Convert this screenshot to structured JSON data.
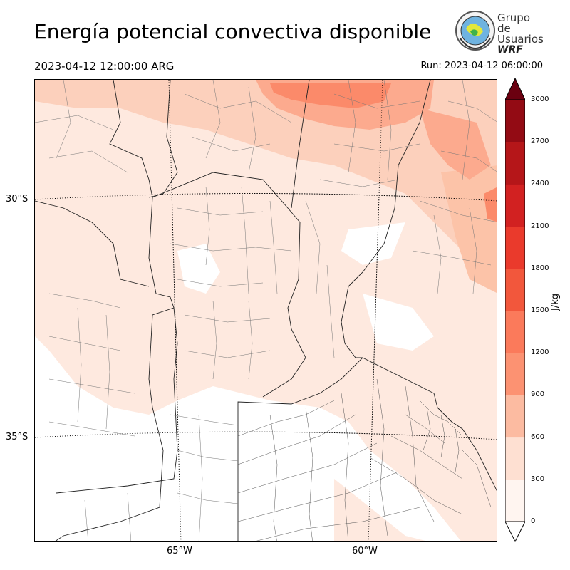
{
  "header": {
    "title": "Energía potencial convectiva disponible",
    "valid_time": "2023-04-12 12:00:00 ARG",
    "run_time": "Run: 2023-04-12 06:00:00"
  },
  "logo": {
    "line1": "Grupo de",
    "line2": "Usuarios",
    "line3": "WRF"
  },
  "map": {
    "lat_labels": [
      "30°S",
      "35°S"
    ],
    "lon_labels": [
      "65°W",
      "60°W"
    ],
    "fill_colors": {
      "light": "#fee9df",
      "mid": "#fcd0bc",
      "strong": "#fcaa8e",
      "stronger": "#fb8a6a"
    }
  },
  "colorbar": {
    "unit": "J/kg",
    "ticks": [
      "0",
      "300",
      "600",
      "900",
      "1200",
      "1500",
      "1800",
      "2100",
      "2400",
      "2700",
      "3000"
    ],
    "colors": [
      "#fff5f0",
      "#fee0d2",
      "#fcbba1",
      "#fc9272",
      "#fb7a5b",
      "#f2573c",
      "#ea3a2c",
      "#d22121",
      "#b51619",
      "#930b14",
      "#6b0010"
    ]
  }
}
